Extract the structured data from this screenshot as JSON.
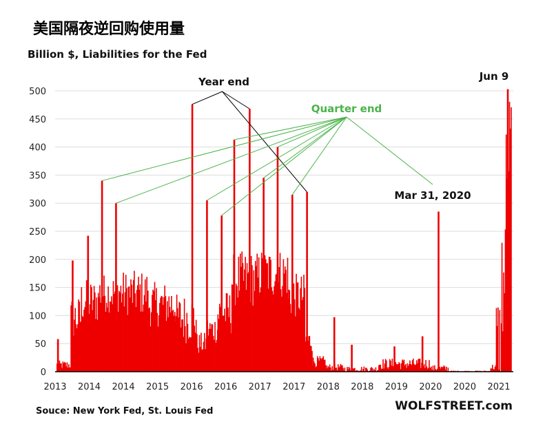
{
  "page_title": "美国隔夜逆回购使用量",
  "colors": {
    "bar": "#ee0000",
    "year_end_line": "#000000",
    "quarter_end": "#4ab34a",
    "text": "#111111"
  },
  "chart_data": {
    "type": "bar",
    "title": "",
    "ylabel": "Billion $, Liabilities for the Fed",
    "xlabel": "",
    "ylim": [
      0,
      500
    ],
    "yticks": [
      0,
      50,
      100,
      150,
      200,
      250,
      300,
      350,
      400,
      450,
      500
    ],
    "xtick_labels": [
      "2013",
      "2014",
      "2014",
      "2015",
      "2016",
      "2016",
      "2017",
      "2017",
      "2018",
      "2018",
      "2019",
      "2020",
      "2020",
      "2021"
    ],
    "source": "Souce: New York Fed, St. Louis Fed",
    "brand": "WOLFSTREET.com",
    "annotations": {
      "year_end": "Year end",
      "quarter_end": "Quarter end",
      "mar31": "Mar 31, 2020",
      "jun9": "Jun 9"
    },
    "x_range": [
      0,
      65
    ],
    "spikes": [
      {
        "x": 0.2,
        "value": 58,
        "role": "other"
      },
      {
        "x": 2.3,
        "value": 198,
        "role": "other"
      },
      {
        "x": 4.5,
        "value": 242,
        "role": "other"
      },
      {
        "x": 6.5,
        "value": 340,
        "role": "quarter"
      },
      {
        "x": 8.5,
        "value": 300,
        "role": "quarter"
      },
      {
        "x": 19.4,
        "value": 476,
        "role": "year"
      },
      {
        "x": 21.5,
        "value": 305,
        "role": "quarter"
      },
      {
        "x": 23.6,
        "value": 278,
        "role": "quarter"
      },
      {
        "x": 25.4,
        "value": 413,
        "role": "quarter"
      },
      {
        "x": 27.6,
        "value": 468,
        "role": "year"
      },
      {
        "x": 29.6,
        "value": 345,
        "role": "quarter"
      },
      {
        "x": 31.6,
        "value": 400,
        "role": "quarter"
      },
      {
        "x": 33.7,
        "value": 315,
        "role": "quarter"
      },
      {
        "x": 35.8,
        "value": 320,
        "role": "year"
      },
      {
        "x": 39.7,
        "value": 97,
        "role": "other"
      },
      {
        "x": 42.2,
        "value": 48,
        "role": "other"
      },
      {
        "x": 48.3,
        "value": 45,
        "role": "other"
      },
      {
        "x": 52.3,
        "value": 63,
        "role": "other"
      },
      {
        "x": 54.6,
        "value": 285,
        "role": "quarter"
      },
      {
        "x": 64.5,
        "value": 503,
        "role": "other"
      }
    ],
    "baseline_segments": [
      {
        "from": 0.0,
        "to": 2.0,
        "value": 12,
        "jitter": 8
      },
      {
        "from": 2.0,
        "to": 3.5,
        "value": 95,
        "jitter": 40
      },
      {
        "from": 3.5,
        "to": 6.0,
        "value": 125,
        "jitter": 40
      },
      {
        "from": 6.0,
        "to": 9.0,
        "value": 140,
        "jitter": 35
      },
      {
        "from": 9.0,
        "to": 13.0,
        "value": 140,
        "jitter": 40
      },
      {
        "from": 13.0,
        "to": 17.0,
        "value": 120,
        "jitter": 40
      },
      {
        "from": 17.0,
        "to": 20.0,
        "value": 95,
        "jitter": 45
      },
      {
        "from": 20.0,
        "to": 21.5,
        "value": 50,
        "jitter": 20
      },
      {
        "from": 21.5,
        "to": 23.0,
        "value": 75,
        "jitter": 25
      },
      {
        "from": 23.0,
        "to": 25.0,
        "value": 105,
        "jitter": 40
      },
      {
        "from": 25.0,
        "to": 29.0,
        "value": 165,
        "jitter": 50
      },
      {
        "from": 29.0,
        "to": 33.0,
        "value": 175,
        "jitter": 45
      },
      {
        "from": 33.0,
        "to": 35.5,
        "value": 135,
        "jitter": 40
      },
      {
        "from": 35.5,
        "to": 36.5,
        "value": 55,
        "jitter": 20
      },
      {
        "from": 36.5,
        "to": 38.5,
        "value": 18,
        "jitter": 10
      },
      {
        "from": 38.5,
        "to": 41.0,
        "value": 8,
        "jitter": 6
      },
      {
        "from": 41.0,
        "to": 46.0,
        "value": 5,
        "jitter": 5
      },
      {
        "from": 46.0,
        "to": 53.5,
        "value": 14,
        "jitter": 10
      },
      {
        "from": 53.5,
        "to": 56.0,
        "value": 6,
        "jitter": 6
      },
      {
        "from": 56.0,
        "to": 62.0,
        "value": 1,
        "jitter": 1
      },
      {
        "from": 62.0,
        "to": 62.8,
        "value": 8,
        "jitter": 6
      },
      {
        "from": 62.8,
        "to": 63.6,
        "value": 60,
        "jitter": 80
      },
      {
        "from": 63.6,
        "to": 64.2,
        "value": 160,
        "jitter": 120
      },
      {
        "from": 64.2,
        "to": 65.0,
        "value": 400,
        "jitter": 100
      }
    ]
  }
}
